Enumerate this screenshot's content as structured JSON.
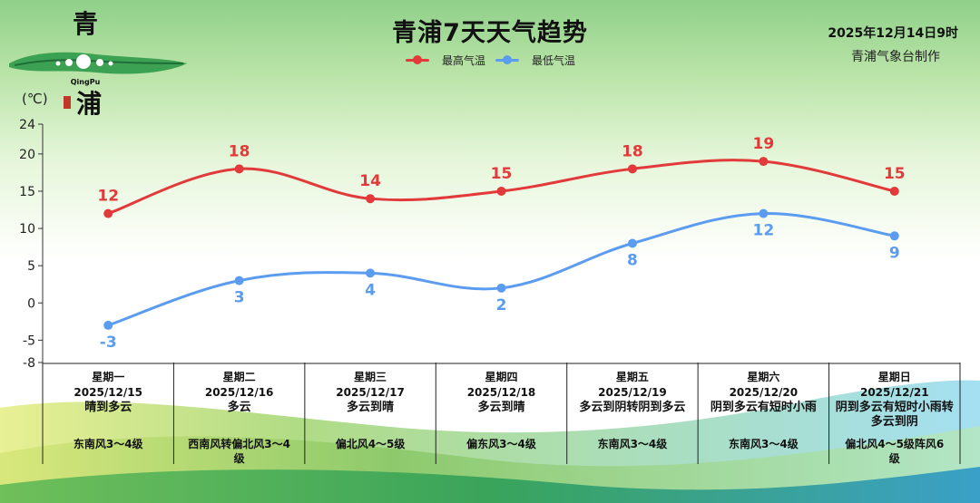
{
  "header": {
    "title": "青浦7天天气趋势",
    "issue_date": "2025年12月14日9时",
    "issuer": "青浦气象台制作",
    "unit": "(℃)"
  },
  "logo": {
    "char_top": "青",
    "char_bottom": "浦",
    "romanized": "QingPu"
  },
  "legend": {
    "high_label": "最高气温",
    "low_label": "最低气温"
  },
  "colors": {
    "high": "#e23a3a",
    "low": "#5b9cf0"
  },
  "days": [
    {
      "weekday": "星期一",
      "date": "2025/12/15",
      "weather": "晴到多云",
      "wind": "东南风3～4级"
    },
    {
      "weekday": "星期二",
      "date": "2025/12/16",
      "weather": "多云",
      "wind": "西南风转偏北风3～4级"
    },
    {
      "weekday": "星期三",
      "date": "2025/12/17",
      "weather": "多云到晴",
      "wind": "偏北风4～5级"
    },
    {
      "weekday": "星期四",
      "date": "2025/12/18",
      "weather": "多云到晴",
      "wind": "偏东风3～4级"
    },
    {
      "weekday": "星期五",
      "date": "2025/12/19",
      "weather": "多云到阴转阴到多云",
      "wind": "东南风3～4级"
    },
    {
      "weekday": "星期六",
      "date": "2025/12/20",
      "weather": "阴到多云有短时小雨",
      "wind": "东南风3～4级"
    },
    {
      "weekday": "星期日",
      "date": "2025/12/21",
      "weather": "阴到多云有短时小雨转多云到阴",
      "wind": "偏北风4～5级阵风6级"
    }
  ],
  "chart_data": {
    "type": "line",
    "title": "青浦7天天气趋势",
    "ylabel": "(℃)",
    "ylim": [
      -8,
      24
    ],
    "yticks": [
      -8,
      -5,
      0,
      5,
      10,
      15,
      20,
      24
    ],
    "categories": [
      "星期一",
      "星期二",
      "星期三",
      "星期四",
      "星期五",
      "星期六",
      "星期日"
    ],
    "series": [
      {
        "name": "最高气温",
        "values": [
          12,
          18,
          14,
          15,
          18,
          19,
          15
        ]
      },
      {
        "name": "最低气温",
        "values": [
          -3,
          3,
          4,
          2,
          8,
          12,
          9
        ]
      }
    ],
    "legend_position": "top-center"
  }
}
